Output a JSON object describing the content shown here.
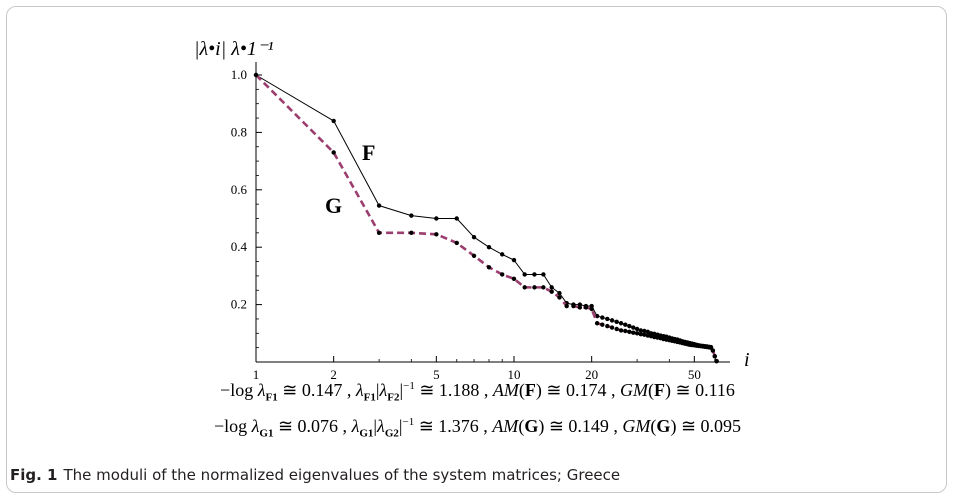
{
  "chart_data": {
    "type": "line",
    "xscale": "log",
    "xlim": [
      1,
      64
    ],
    "ylim": [
      0,
      1
    ],
    "xticks": [
      1,
      2,
      5,
      10,
      20,
      50
    ],
    "yticks": [
      0.2,
      0.4,
      0.6,
      0.8,
      1.0
    ],
    "xlabel": "i",
    "ylabel": "|λ•i| λ•1⁻¹",
    "series": [
      {
        "name": "F",
        "style": "solid",
        "color": "#000000",
        "x": [
          1,
          2,
          3,
          4,
          5,
          6,
          7,
          8,
          9,
          10,
          11,
          12,
          13,
          14,
          15,
          16,
          17,
          18,
          19,
          20,
          21,
          22,
          23,
          24,
          25,
          26,
          27,
          28,
          29,
          30,
          31,
          32,
          33,
          34,
          35,
          36,
          37,
          38,
          39,
          40,
          41,
          42,
          43,
          44,
          45,
          46,
          47,
          48,
          49,
          50,
          51,
          52,
          53,
          54,
          55,
          56,
          57,
          58,
          59,
          60,
          61
        ],
        "values": [
          1.0,
          0.84,
          0.545,
          0.51,
          0.5,
          0.5,
          0.435,
          0.4,
          0.375,
          0.355,
          0.305,
          0.305,
          0.305,
          0.26,
          0.24,
          0.205,
          0.2,
          0.2,
          0.195,
          0.195,
          0.16,
          0.155,
          0.15,
          0.145,
          0.14,
          0.135,
          0.13,
          0.125,
          0.12,
          0.115,
          0.11,
          0.108,
          0.105,
          0.1,
          0.098,
          0.095,
          0.092,
          0.09,
          0.088,
          0.085,
          0.082,
          0.08,
          0.078,
          0.075,
          0.072,
          0.07,
          0.068,
          0.066,
          0.064,
          0.062,
          0.06,
          0.058,
          0.057,
          0.056,
          0.055,
          0.054,
          0.053,
          0.052,
          0.04,
          0.02,
          0.003
        ]
      },
      {
        "name": "G",
        "style": "dashed",
        "color": "#9b3d6e",
        "x": [
          1,
          2,
          3,
          4,
          5,
          6,
          7,
          8,
          9,
          10,
          11,
          12,
          13,
          14,
          15,
          16,
          17,
          18,
          19,
          20,
          21,
          22,
          23,
          24,
          25,
          26,
          27,
          28,
          29,
          30,
          31,
          32,
          33,
          34,
          35,
          36,
          37,
          38,
          39,
          40,
          41,
          42,
          43,
          44,
          45,
          46,
          47,
          48,
          49,
          50,
          51,
          52,
          53,
          54,
          55,
          56,
          57,
          58,
          59,
          60,
          61
        ],
        "values": [
          1.0,
          0.73,
          0.45,
          0.45,
          0.445,
          0.415,
          0.37,
          0.33,
          0.305,
          0.29,
          0.26,
          0.26,
          0.26,
          0.245,
          0.225,
          0.195,
          0.195,
          0.19,
          0.19,
          0.185,
          0.135,
          0.13,
          0.125,
          0.12,
          0.115,
          0.11,
          0.108,
          0.105,
          0.102,
          0.1,
          0.097,
          0.095,
          0.092,
          0.09,
          0.087,
          0.085,
          0.083,
          0.08,
          0.078,
          0.076,
          0.074,
          0.072,
          0.07,
          0.068,
          0.066,
          0.064,
          0.062,
          0.06,
          0.059,
          0.058,
          0.057,
          0.056,
          0.055,
          0.054,
          0.053,
          0.052,
          0.051,
          0.05,
          0.04,
          0.02,
          0.003
        ]
      }
    ]
  },
  "formulas": {
    "line1": {
      "a_pre": "−log ",
      "a_sym": "λ",
      "a_sub": "F1",
      "a_val": " ≅ 0.147 ,  ",
      "b_sym1": "λ",
      "b_sub1": "F1",
      "b_abs_open": "|",
      "b_sym2": "λ",
      "b_sub2": "F2",
      "b_abs_close": "|",
      "b_sup": "−1",
      "b_val": " ≅ 1.188 ,  ",
      "c_fn": "AM",
      "c_arg": "F",
      "c_val": " ≅ 0.174 ,  ",
      "d_fn": "GM",
      "d_arg": "F",
      "d_val": " ≅ 0.116"
    },
    "line2": {
      "a_pre": "−log ",
      "a_sym": "λ",
      "a_sub": "G1",
      "a_val": " ≅ 0.076 ,  ",
      "b_sym1": "λ",
      "b_sub1": "G1",
      "b_abs_open": "|",
      "b_sym2": "λ",
      "b_sub2": "G2",
      "b_abs_close": "|",
      "b_sup": "−1",
      "b_val": " ≅ 1.376 ,  ",
      "c_fn": "AM",
      "c_arg": "G",
      "c_val": " ≅ 0.149 ,  ",
      "d_fn": "GM",
      "d_arg": "G",
      "d_val": " ≅ 0.095"
    }
  },
  "caption": {
    "label": "Fig. 1",
    "text": "The moduli of the normalized eigenvalues of the system matrices; Greece"
  }
}
